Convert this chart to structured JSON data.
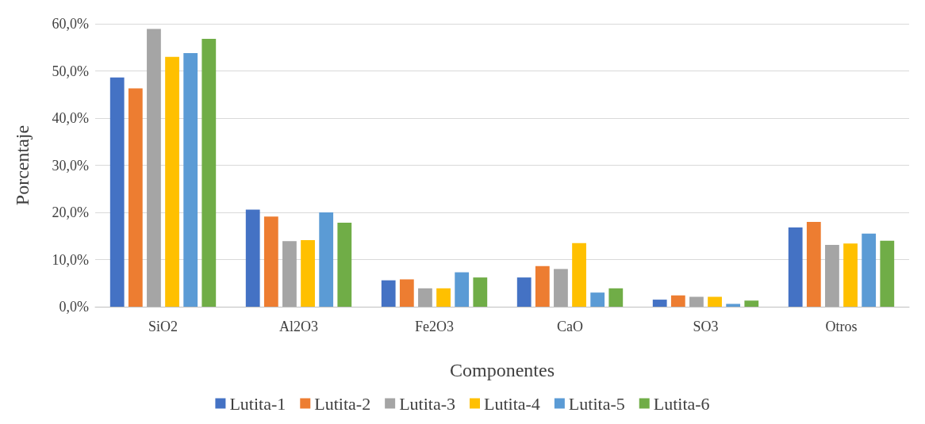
{
  "chart_data": {
    "type": "bar",
    "xlabel": "Componentes",
    "ylabel": "Porcentaje",
    "categories": [
      "SiO2",
      "Al2O3",
      "Fe2O3",
      "CaO",
      "SO3",
      "Otros"
    ],
    "series": [
      {
        "name": "Lutita-1",
        "color": "#4472c4",
        "values": [
          48.6,
          20.6,
          5.6,
          6.2,
          1.5,
          16.8
        ]
      },
      {
        "name": "Lutita-2",
        "color": "#ed7d31",
        "values": [
          46.3,
          19.1,
          5.8,
          8.6,
          2.4,
          18.0
        ]
      },
      {
        "name": "Lutita-3",
        "color": "#a5a5a5",
        "values": [
          58.9,
          13.9,
          3.9,
          8.0,
          2.1,
          13.1
        ]
      },
      {
        "name": "Lutita-4",
        "color": "#ffc000",
        "values": [
          53.0,
          14.1,
          3.9,
          13.5,
          2.1,
          13.4
        ]
      },
      {
        "name": "Lutita-5",
        "color": "#5b9bd5",
        "values": [
          53.8,
          20.0,
          7.3,
          3.0,
          0.6,
          15.5
        ]
      },
      {
        "name": "Lutita-6",
        "color": "#70ad47",
        "values": [
          56.8,
          17.8,
          6.2,
          3.9,
          1.3,
          14.0
        ]
      }
    ],
    "ylim": [
      0,
      60
    ],
    "yticks": [
      {
        "value": 0,
        "label": "0,0%"
      },
      {
        "value": 10,
        "label": "10,0%"
      },
      {
        "value": 20,
        "label": "20,0%"
      },
      {
        "value": 30,
        "label": "30,0%"
      },
      {
        "value": 40,
        "label": "40,0%"
      },
      {
        "value": 50,
        "label": "50,0%"
      },
      {
        "value": 60,
        "label": "60,0%"
      }
    ],
    "grid": "y",
    "legend": "bottom"
  }
}
